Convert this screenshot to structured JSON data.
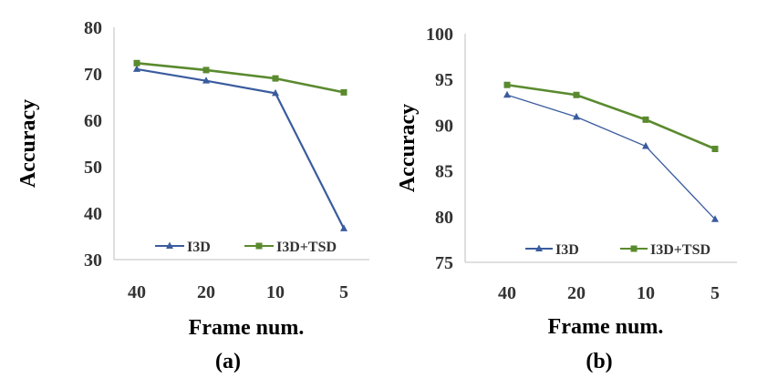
{
  "chart_data": [
    {
      "type": "line",
      "panel_label": "(a)",
      "categories": [
        "40",
        "20",
        "10",
        "5"
      ],
      "series": [
        {
          "name": "I3D",
          "values": [
            71.0,
            68.5,
            65.8,
            36.7
          ],
          "color": "#3a5c9e",
          "marker": "triangle"
        },
        {
          "name": "I3D+TSD",
          "values": [
            72.3,
            70.8,
            69.0,
            66.0
          ],
          "color": "#5a8a2e",
          "marker": "square"
        }
      ],
      "xlabel": "Frame num.",
      "ylabel": "Accuracy",
      "ylim": [
        30,
        80
      ],
      "yticks": [
        "30",
        "40",
        "50",
        "60",
        "70",
        "80"
      ],
      "grid": false,
      "legend_position": "bottom"
    },
    {
      "type": "line",
      "panel_label": "(b)",
      "categories": [
        "40",
        "20",
        "10",
        "5"
      ],
      "series": [
        {
          "name": "I3D",
          "values": [
            93.3,
            90.9,
            87.7,
            79.7
          ],
          "color": "#3a5c9e",
          "marker": "triangle"
        },
        {
          "name": "I3D+TSD",
          "values": [
            94.4,
            93.3,
            90.6,
            87.4
          ],
          "color": "#5a8a2e",
          "marker": "square"
        }
      ],
      "xlabel": "Frame num.",
      "ylabel": "Accuracy",
      "ylim": [
        75,
        100
      ],
      "yticks": [
        "75",
        "80",
        "85",
        "90",
        "95",
        "100"
      ],
      "grid": false,
      "legend_position": "bottom"
    }
  ]
}
